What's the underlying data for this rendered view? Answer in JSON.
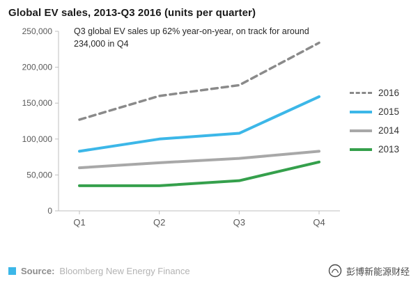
{
  "title": "Global EV sales, 2013-Q3 2016 (units per quarter)",
  "annotation": "Q3 global EV sales up 62% year-on-year, on track for around 234,000 in Q4",
  "footer": {
    "source_label": "Source:",
    "source_value": "Bloomberg New Energy Finance",
    "brand_text": "彭博新能源财经"
  },
  "colors": {
    "accent_cyan": "#3cb7e8",
    "axis": "#bfbfbf",
    "axis_text": "#595959",
    "series_2016": "#8a8a8a",
    "series_2015": "#3cb7e8",
    "series_2014": "#a8a8a8",
    "series_2013": "#35a04c"
  },
  "chart_data": {
    "type": "line",
    "categories": [
      "Q1",
      "Q2",
      "Q3",
      "Q4"
    ],
    "series": [
      {
        "name": "2016",
        "values": [
          127000,
          160000,
          175000,
          234000
        ],
        "color_key": "series_2016",
        "dashed": true
      },
      {
        "name": "2015",
        "values": [
          83000,
          100000,
          108000,
          159000
        ],
        "color_key": "series_2015",
        "dashed": false
      },
      {
        "name": "2014",
        "values": [
          60000,
          67000,
          73000,
          83000
        ],
        "color_key": "series_2014",
        "dashed": false
      },
      {
        "name": "2013",
        "values": [
          35000,
          35000,
          42000,
          68000
        ],
        "color_key": "series_2013",
        "dashed": false
      }
    ],
    "title": "Global EV sales, 2013-Q3 2016 (units per quarter)",
    "xlabel": "",
    "ylabel": "",
    "ylim": [
      0,
      250000
    ],
    "ytick_step": 50000,
    "grid": false,
    "legend_position": "right"
  }
}
